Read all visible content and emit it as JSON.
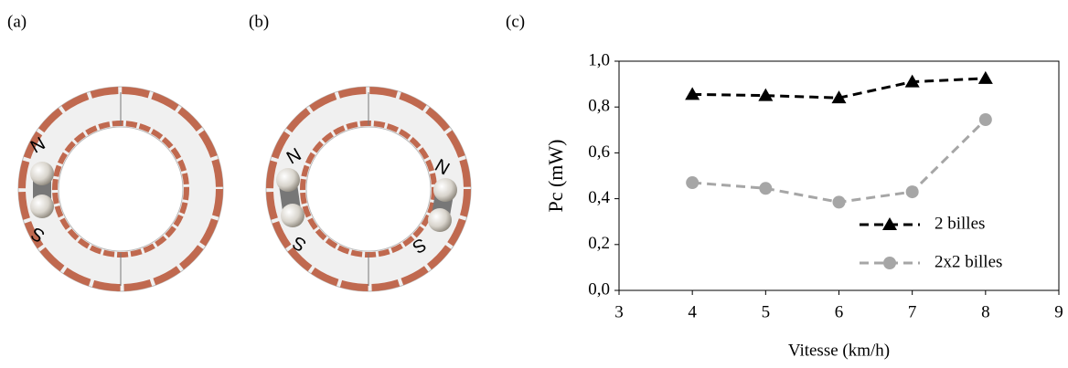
{
  "panels": [
    {
      "label": "(a)",
      "poles": [
        "N",
        "S"
      ]
    },
    {
      "label": "(b)",
      "poles": [
        "N",
        "S",
        "N",
        "S"
      ]
    },
    {
      "label": "(c)"
    }
  ],
  "chart_data": {
    "type": "line",
    "x_label": "Vitesse (km/h)",
    "y_label": "Pc (mW)",
    "x": [
      4,
      5,
      6,
      7,
      8
    ],
    "series": [
      {
        "name": "2 billes",
        "color": "#000000",
        "marker": "triangle",
        "dash": true,
        "values": [
          0.855,
          0.85,
          0.84,
          0.91,
          0.925
        ]
      },
      {
        "name": "2x2 billes",
        "color": "#a6a6a6",
        "marker": "circle",
        "dash": true,
        "values": [
          0.47,
          0.445,
          0.385,
          0.43,
          0.745
        ]
      }
    ],
    "xlim": [
      3,
      9
    ],
    "xticks": [
      3,
      4,
      5,
      6,
      7,
      8,
      9
    ],
    "ylim": [
      0,
      1
    ],
    "yticks": [
      {
        "value": 0,
        "label": "0,0"
      },
      {
        "value": 0.2,
        "label": "0,2"
      },
      {
        "value": 0.4,
        "label": "0,4"
      },
      {
        "value": 0.6,
        "label": "0,6"
      },
      {
        "value": 0.8,
        "label": "0,8"
      },
      {
        "value": 1,
        "label": "1,0"
      }
    ],
    "legend": "right"
  }
}
